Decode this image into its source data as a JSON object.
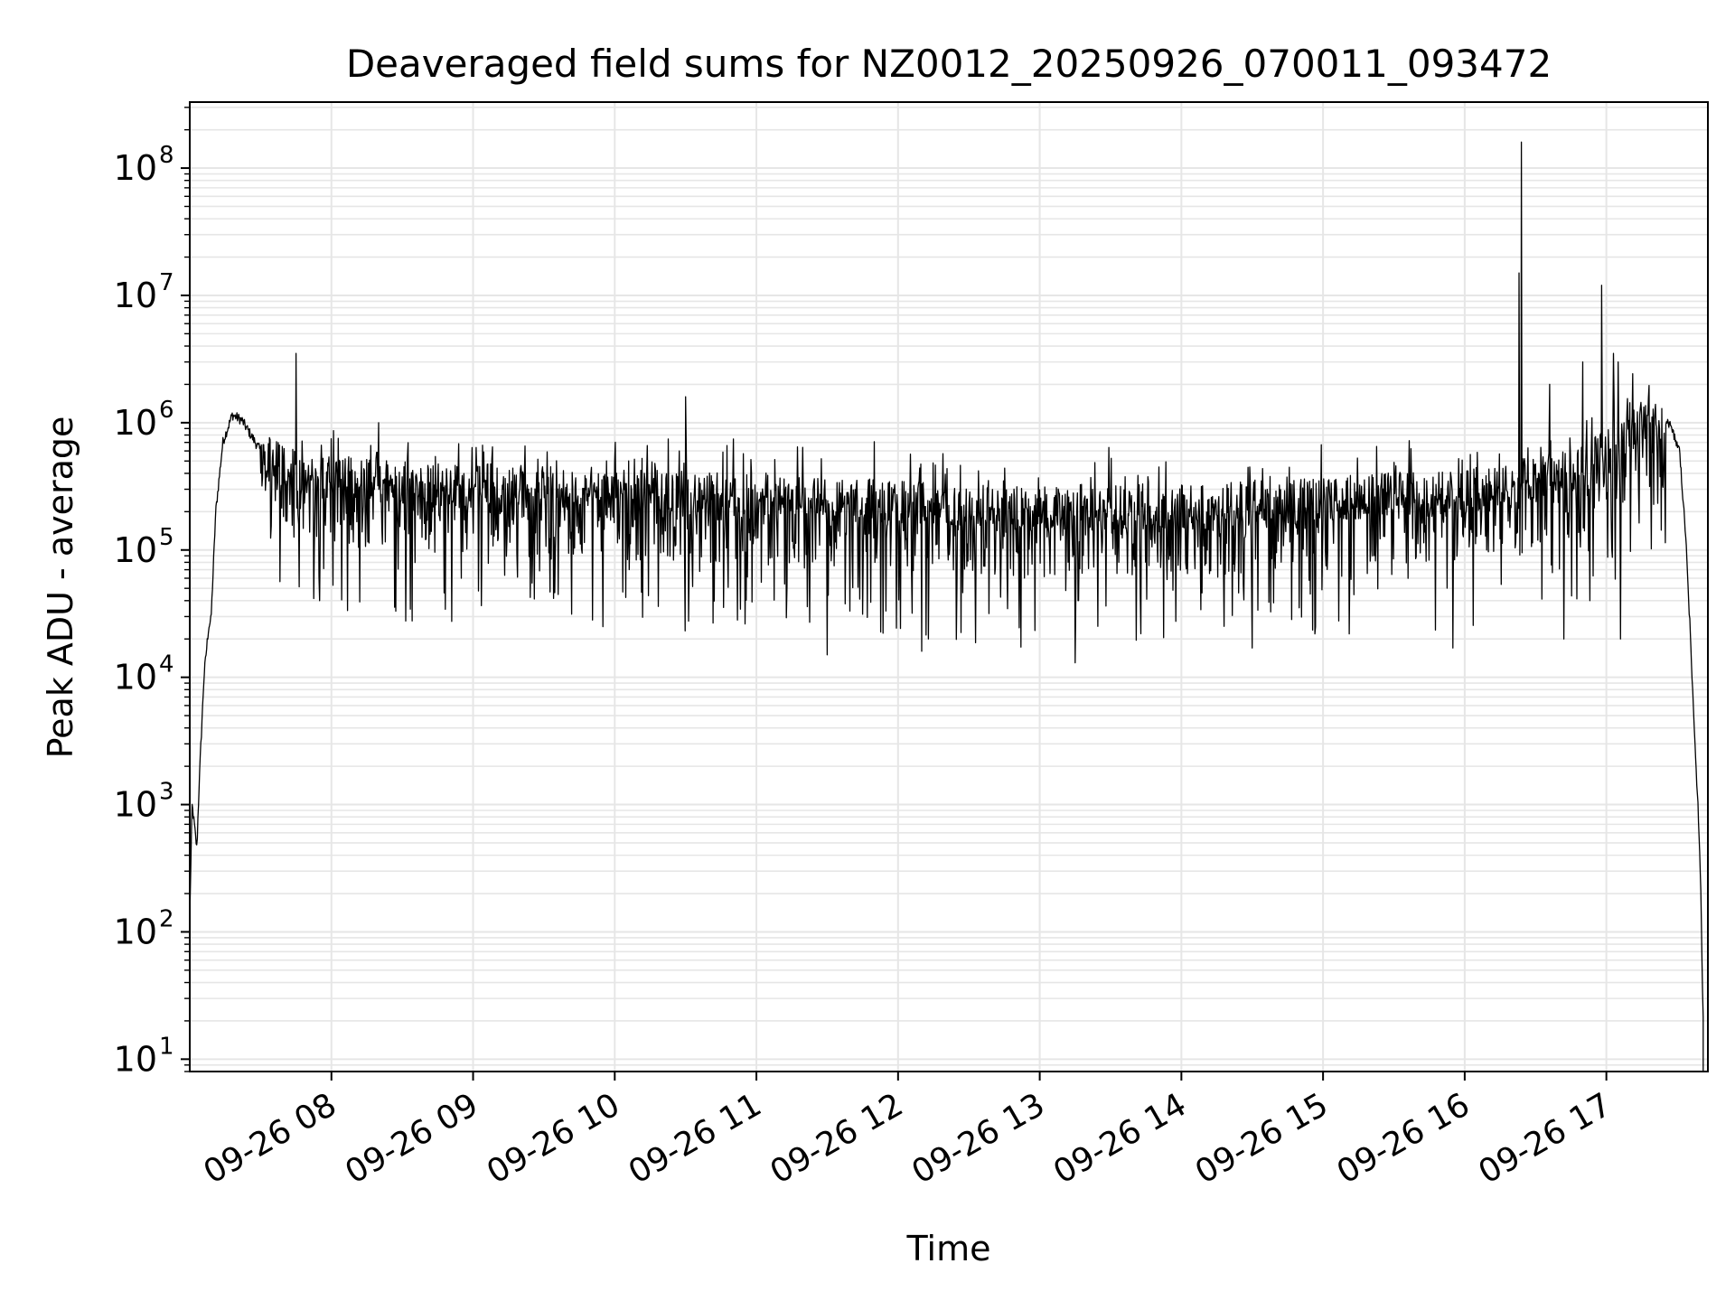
{
  "chart_data": {
    "type": "line",
    "title": "Deaveraged field sums for NZ0012_20250926_070011_093472",
    "xlabel": "Time",
    "ylabel": "Peak ADU - average",
    "yscale": "log",
    "ylim": [
      8,
      330000000
    ],
    "xlim": [
      "2025-09-26 07:00",
      "2025-09-26 17:43"
    ],
    "grid": true,
    "grid_color": "#e6e6e6",
    "line_color": "#000000",
    "x_ticks": [
      {
        "value": "2025-09-26 08:00",
        "label": "09-26 08"
      },
      {
        "value": "2025-09-26 09:00",
        "label": "09-26 09"
      },
      {
        "value": "2025-09-26 10:00",
        "label": "09-26 10"
      },
      {
        "value": "2025-09-26 11:00",
        "label": "09-26 11"
      },
      {
        "value": "2025-09-26 12:00",
        "label": "09-26 12"
      },
      {
        "value": "2025-09-26 13:00",
        "label": "09-26 13"
      },
      {
        "value": "2025-09-26 14:00",
        "label": "09-26 14"
      },
      {
        "value": "2025-09-26 15:00",
        "label": "09-26 15"
      },
      {
        "value": "2025-09-26 16:00",
        "label": "09-26 16"
      },
      {
        "value": "2025-09-26 17:00",
        "label": "09-26 17"
      }
    ],
    "y_ticks": [
      {
        "value": 10,
        "base": "10",
        "exp": "1"
      },
      {
        "value": 100,
        "base": "10",
        "exp": "2"
      },
      {
        "value": 1000,
        "base": "10",
        "exp": "3"
      },
      {
        "value": 10000,
        "base": "10",
        "exp": "4"
      },
      {
        "value": 100000,
        "base": "10",
        "exp": "5"
      },
      {
        "value": 1000000,
        "base": "10",
        "exp": "6"
      },
      {
        "value": 10000000,
        "base": "10",
        "exp": "7"
      },
      {
        "value": 100000000,
        "base": "10",
        "exp": "8"
      }
    ],
    "envelope": [
      {
        "t": "2025-09-26 07:00",
        "y": 130
      },
      {
        "t": "2025-09-26 07:01",
        "y": 1000
      },
      {
        "t": "2025-09-26 07:03",
        "y": 450
      },
      {
        "t": "2025-09-26 07:04",
        "y": 1500
      },
      {
        "t": "2025-09-26 07:06",
        "y": 10000
      },
      {
        "t": "2025-09-26 07:08",
        "y": 25000
      },
      {
        "t": "2025-09-26 07:09",
        "y": 28000
      },
      {
        "t": "2025-09-26 07:11",
        "y": 200000
      },
      {
        "t": "2025-09-26 07:14",
        "y": 700000
      },
      {
        "t": "2025-09-26 07:18",
        "y": 1150000
      },
      {
        "t": "2025-09-26 07:22",
        "y": 1050000
      },
      {
        "t": "2025-09-26 07:30",
        "y": 600000
      },
      {
        "t": "2025-09-26 07:45",
        "y": 400000
      },
      {
        "t": "2025-09-26 08:30",
        "y": 330000
      },
      {
        "t": "2025-09-26 10:00",
        "y": 300000
      },
      {
        "t": "2025-09-26 11:30",
        "y": 250000
      },
      {
        "t": "2025-09-26 13:00",
        "y": 210000
      },
      {
        "t": "2025-09-26 14:00",
        "y": 220000
      },
      {
        "t": "2025-09-26 15:00",
        "y": 250000
      },
      {
        "t": "2025-09-26 16:00",
        "y": 300000
      },
      {
        "t": "2025-09-26 16:45",
        "y": 420000
      },
      {
        "t": "2025-09-26 17:00",
        "y": 600000
      },
      {
        "t": "2025-09-26 17:10",
        "y": 900000
      },
      {
        "t": "2025-09-26 17:18",
        "y": 1100000
      },
      {
        "t": "2025-09-26 17:26",
        "y": 1050000
      },
      {
        "t": "2025-09-26 17:31",
        "y": 600000
      },
      {
        "t": "2025-09-26 17:34",
        "y": 100000
      },
      {
        "t": "2025-09-26 17:37",
        "y": 5000
      },
      {
        "t": "2025-09-26 17:39",
        "y": 800
      },
      {
        "t": "2025-09-26 17:40",
        "y": 200
      },
      {
        "t": "2025-09-26 17:41",
        "y": 20
      },
      {
        "t": "2025-09-26 17:41",
        "y": 8
      }
    ],
    "spikes": [
      {
        "t": "2025-09-26 07:45",
        "y": 3500000
      },
      {
        "t": "2025-09-26 07:55",
        "y": 40000
      },
      {
        "t": "2025-09-26 08:20",
        "y": 1000000
      },
      {
        "t": "2025-09-26 08:55",
        "y": 60000
      },
      {
        "t": "2025-09-26 09:55",
        "y": 25000
      },
      {
        "t": "2025-09-26 10:30",
        "y": 1600000
      },
      {
        "t": "2025-09-26 11:30",
        "y": 15000
      },
      {
        "t": "2025-09-26 12:10",
        "y": 16000
      },
      {
        "t": "2025-09-26 13:15",
        "y": 13000
      },
      {
        "t": "2025-09-26 14:30",
        "y": 17000
      },
      {
        "t": "2025-09-26 15:55",
        "y": 17000
      },
      {
        "t": "2025-09-26 16:24",
        "y": 160000000
      },
      {
        "t": "2025-09-26 16:23",
        "y": 15000000
      },
      {
        "t": "2025-09-26 16:36",
        "y": 2000000
      },
      {
        "t": "2025-09-26 16:42",
        "y": 20000
      },
      {
        "t": "2025-09-26 16:50",
        "y": 3000000
      },
      {
        "t": "2025-09-26 16:53",
        "y": 40000
      },
      {
        "t": "2025-09-26 16:58",
        "y": 12000000
      },
      {
        "t": "2025-09-26 17:03",
        "y": 3500000
      },
      {
        "t": "2025-09-26 17:05",
        "y": 3000000
      },
      {
        "t": "2025-09-26 17:06",
        "y": 20000
      }
    ]
  }
}
